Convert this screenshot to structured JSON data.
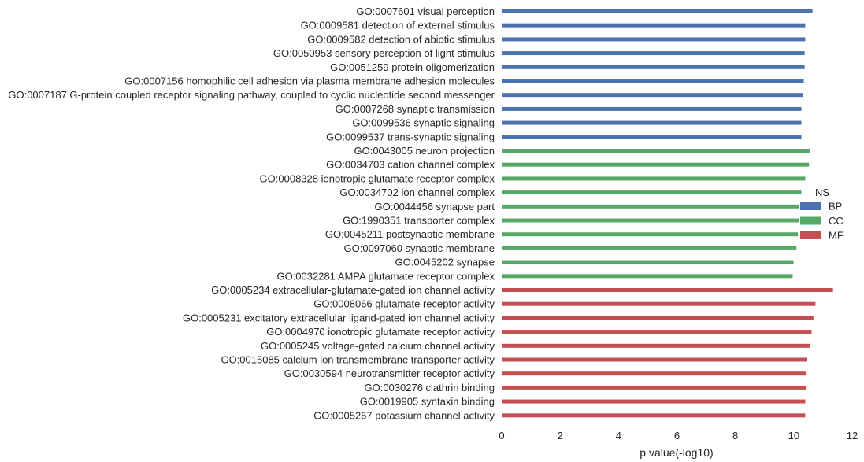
{
  "chart_data": {
    "type": "bar",
    "orientation": "horizontal",
    "title": "",
    "xlabel": "p value(-log10)",
    "ylabel": "",
    "xlim": [
      0,
      12
    ],
    "xticks": [
      "0",
      "2",
      "4",
      "6",
      "8",
      "10",
      "12"
    ],
    "grid": false,
    "legend": {
      "title": "NS",
      "placement": "right",
      "entries": [
        {
          "name": "BP",
          "color": "#4c72b0"
        },
        {
          "name": "CC",
          "color": "#55a868"
        },
        {
          "name": "MF",
          "color": "#c44e52"
        }
      ]
    },
    "series": [
      {
        "name": "BP",
        "color": "#4c72b0",
        "categories": [
          "GO:0007601 visual perception",
          "GO:0009581 detection of external stimulus",
          "GO:0009582 detection of abiotic stimulus",
          "GO:0050953 sensory perception of light stimulus",
          "GO:0051259 protein oligomerization",
          "GO:0007156 homophilic cell adhesion via plasma membrane adhesion molecules",
          "GO:0007187 G-protein coupled receptor signaling pathway, coupled to cyclic nucleotide second messenger",
          "GO:0007268 synaptic transmission",
          "GO:0099536 synaptic signaling",
          "GO:0099537 trans-synaptic signaling"
        ],
        "values": [
          10.65,
          10.4,
          10.4,
          10.38,
          10.38,
          10.35,
          10.32,
          10.27,
          10.27,
          10.27
        ]
      },
      {
        "name": "CC",
        "color": "#55a868",
        "categories": [
          "GO:0043005 neuron projection",
          "GO:0034703 cation channel complex",
          "GO:0008328 ionotropic glutamate receptor complex",
          "GO:0034702 ion channel complex",
          "GO:0044456 synapse part",
          "GO:1990351 transporter complex",
          "GO:0045211 postsynaptic membrane",
          "GO:0097060 synaptic membrane",
          "GO:0045202 synapse",
          "GO:0032281 AMPA glutamate receptor complex"
        ],
        "values": [
          10.55,
          10.53,
          10.4,
          10.27,
          10.2,
          10.2,
          10.15,
          10.1,
          10.0,
          9.97
        ]
      },
      {
        "name": "MF",
        "color": "#c44e52",
        "categories": [
          "GO:0005234 extracellular-glutamate-gated ion channel activity",
          "GO:0008066 glutamate receptor activity",
          "GO:0005231 excitatory extracellular ligand-gated ion channel activity",
          "GO:0004970 ionotropic glutamate receptor activity",
          "GO:0005245 voltage-gated calcium channel activity",
          "GO:0015085 calcium ion transmembrane transporter activity",
          "GO:0030594 neurotransmitter receptor activity",
          "GO:0030276 clathrin binding",
          "GO:0019905 syntaxin binding",
          "GO:0005267 potassium channel activity"
        ],
        "values": [
          11.35,
          10.75,
          10.68,
          10.62,
          10.57,
          10.47,
          10.42,
          10.42,
          10.4,
          10.4
        ]
      }
    ]
  }
}
